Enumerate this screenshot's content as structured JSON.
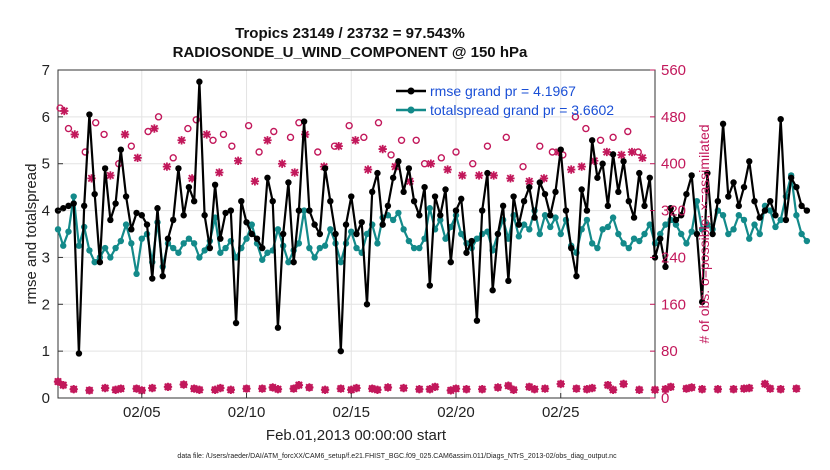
{
  "chart_data": {
    "type": "line",
    "title": "Tropics 23149 / 23732 = 97.543%",
    "subtitle": "RADIOSONDE_U_WIND_COMPONENT @ 150 hPa",
    "xlabel": "Feb.01,2013 00:00:00 start",
    "ylabel": "rmse and totalspread",
    "y2label": "# of obs: o=possible; ×=assimilated",
    "footnote": "data file: /Users/raeder/DAI/ATM_forcXX/CAM6_setup/f.e21.FHIST_BGC.f09_025.CAM6assim.011/Diags_NTrS_2013-02/obs_diag_output.nc",
    "xlim": [
      1,
      29.5
    ],
    "ylim": [
      0,
      7
    ],
    "y2lim": [
      0,
      560
    ],
    "x_ticks": [
      5,
      10,
      15,
      20,
      25
    ],
    "x_tick_labels": [
      "02/05",
      "02/10",
      "02/15",
      "02/20",
      "02/25"
    ],
    "y_ticks": [
      "0",
      "1",
      "2",
      "3",
      "4",
      "5",
      "6",
      "7"
    ],
    "y2_ticks": [
      "0",
      "80",
      "160",
      "240",
      "320",
      "400",
      "480",
      "560"
    ],
    "grid": true,
    "legend_position": "top-right",
    "x_start": 1.0,
    "x_step": 0.25,
    "series": [
      {
        "name": "rmse grand pr = 4.1967",
        "color": "#000000",
        "axis": "left",
        "values": [
          4.0,
          4.05,
          4.1,
          4.15,
          0.95,
          4.1,
          6.05,
          4.35,
          2.9,
          4.9,
          3.8,
          4.15,
          5.3,
          4.3,
          3.6,
          3.95,
          3.9,
          3.7,
          2.55,
          4.05,
          2.6,
          3.4,
          3.8,
          4.9,
          3.9,
          4.5,
          4.2,
          6.75,
          3.9,
          3.2,
          4.55,
          3.4,
          3.95,
          4.0,
          1.6,
          4.2,
          3.75,
          3.5,
          3.4,
          3.2,
          4.7,
          4.2,
          1.5,
          3.5,
          4.6,
          2.9,
          4.0,
          5.9,
          4.0,
          3.7,
          3.5,
          4.9,
          4.2,
          3.5,
          1.0,
          3.7,
          4.3,
          3.5,
          3.75,
          2.0,
          4.4,
          4.8,
          3.7,
          4.1,
          4.7,
          5.05,
          4.4,
          4.9,
          4.2,
          3.9,
          4.5,
          2.4,
          4.3,
          3.9,
          4.45,
          2.9,
          4.0,
          4.25,
          3.1,
          3.35,
          1.65,
          4.0,
          4.8,
          2.3,
          3.5,
          4.1,
          2.5,
          4.3,
          3.7,
          4.2,
          4.5,
          3.85,
          4.6,
          4.35,
          3.9,
          4.4,
          5.3,
          4.0,
          3.2,
          2.6,
          4.45,
          4.0,
          5.5,
          4.7,
          5.0,
          4.1,
          5.2,
          4.4,
          5.05,
          4.2,
          3.85,
          4.8,
          4.1,
          4.7,
          3.0,
          3.4,
          2.8,
          4.05,
          3.8,
          3.9,
          4.35,
          4.75,
          3.5,
          2.05,
          4.8,
          3.5,
          4.2,
          5.85,
          4.3,
          4.6,
          4.1,
          4.5,
          5.05,
          4.2,
          3.85,
          4.0,
          4.2,
          3.9,
          5.95,
          3.8,
          4.7,
          4.5,
          4.1,
          4.0
        ]
      },
      {
        "name": "totalspread grand pr = 3.6602",
        "color": "#138a8a",
        "axis": "left",
        "values": [
          3.6,
          3.25,
          3.55,
          4.3,
          3.25,
          3.65,
          3.15,
          2.9,
          3.0,
          3.2,
          3.0,
          3.2,
          3.35,
          3.7,
          3.3,
          2.65,
          3.4,
          3.5,
          2.9,
          3.75,
          2.8,
          3.3,
          3.2,
          3.1,
          3.3,
          3.4,
          3.3,
          3.0,
          3.15,
          3.35,
          3.85,
          3.1,
          3.2,
          3.35,
          3.0,
          3.2,
          3.4,
          3.7,
          3.3,
          2.95,
          3.1,
          3.15,
          3.6,
          3.25,
          2.9,
          3.15,
          3.3,
          4.0,
          3.2,
          3.0,
          3.2,
          3.25,
          3.6,
          3.3,
          2.9,
          3.3,
          3.55,
          3.2,
          3.1,
          3.5,
          3.7,
          3.3,
          3.85,
          3.9,
          3.8,
          3.95,
          3.6,
          3.35,
          3.2,
          3.2,
          3.4,
          4.05,
          3.6,
          3.8,
          3.4,
          3.65,
          3.9,
          3.5,
          3.3,
          3.2,
          3.4,
          3.5,
          3.55,
          3.15,
          3.5,
          3.8,
          3.4,
          3.9,
          3.45,
          3.7,
          3.6,
          4.0,
          3.5,
          3.9,
          3.65,
          3.85,
          3.5,
          3.8,
          3.25,
          3.1,
          3.6,
          3.8,
          3.3,
          3.2,
          3.6,
          3.65,
          3.85,
          3.5,
          3.3,
          3.2,
          3.4,
          3.35,
          3.5,
          3.7,
          3.3,
          3.5,
          3.7,
          3.8,
          3.7,
          3.5,
          3.3,
          3.55,
          4.2,
          3.6,
          3.7,
          3.6,
          4.0,
          3.9,
          3.5,
          3.6,
          3.9,
          3.8,
          3.4,
          3.7,
          3.5,
          4.1,
          4.0,
          3.65,
          3.8,
          4.3,
          4.75,
          3.9,
          3.5,
          3.35
        ]
      },
      {
        "name": "obs possible (o)",
        "color": "#c2185b",
        "axis": "right",
        "values": [
          28,
          22,
          20,
          15,
          15,
          17,
          13,
          15,
          14,
          17,
          24,
          14,
          16,
          11,
          15,
          16,
          13,
          15,
          17,
          12,
          13,
          19,
          15,
          13,
          23,
          15,
          16,
          14,
          17,
          15,
          14,
          17,
          23,
          14,
          15,
          13,
          16,
          19,
          15,
          16,
          30,
          18,
          15,
          17,
          14,
          16,
          22,
          15,
          18,
          16,
          13,
          14,
          19,
          14,
          16,
          15,
          14,
          17,
          15,
          19,
          16,
          14,
          15,
          18,
          14,
          16,
          17,
          12,
          14,
          15,
          16,
          15,
          19,
          14,
          15,
          13,
          16,
          17,
          15,
          16,
          14,
          15,
          24,
          16,
          18,
          15,
          21,
          14,
          15,
          13,
          19,
          15,
          14,
          16,
          17,
          15,
          24,
          15,
          14,
          16,
          18,
          15,
          17,
          13,
          15,
          22,
          14,
          16,
          24,
          15,
          17,
          14,
          16,
          18,
          14,
          15,
          15,
          19,
          23,
          14,
          16,
          18,
          14,
          15,
          17,
          16,
          15,
          21,
          14,
          15,
          28,
          16,
          17,
          14,
          15,
          24,
          16,
          14,
          15,
          18,
          15,
          16,
          15,
          5
        ]
      },
      {
        "name": "obs assimilated (×)",
        "color": "#c2185b",
        "axis": "right",
        "values": [
          28,
          22,
          20,
          15,
          15,
          17,
          13,
          15,
          14,
          17,
          24,
          14,
          16,
          11,
          15,
          16,
          13,
          15,
          17,
          12,
          13,
          19,
          15,
          13,
          23,
          15,
          16,
          14,
          17,
          15,
          14,
          17,
          23,
          14,
          15,
          13,
          16,
          19,
          15,
          16,
          30,
          18,
          15,
          17,
          14,
          16,
          22,
          15,
          18,
          16,
          13,
          14,
          19,
          14,
          16,
          15,
          14,
          17,
          15,
          19,
          16,
          14,
          15,
          18,
          14,
          16,
          17,
          12,
          14,
          15,
          16,
          15,
          19,
          14,
          15,
          13,
          16,
          17,
          15,
          16,
          14,
          15,
          24,
          16,
          18,
          15,
          21,
          14,
          15,
          13,
          19,
          15,
          14,
          16,
          17,
          15,
          24,
          15,
          14,
          16,
          18,
          15,
          17,
          13,
          15,
          22,
          14,
          16,
          24,
          15,
          17,
          14,
          16,
          18,
          14,
          15,
          15,
          19,
          23,
          14,
          16,
          18,
          14,
          15,
          17,
          16,
          15,
          21,
          14,
          15,
          28,
          16,
          17,
          14,
          15,
          24,
          16,
          14,
          15,
          18,
          15,
          16,
          15,
          5
        ]
      }
    ],
    "obs_upper": {
      "possible_x": [
        1.1,
        1.5,
        2.3,
        2.8,
        3.2,
        3.9,
        4.5,
        5.3,
        5.8,
        6.5,
        7.2,
        7.6,
        8.4,
        8.9,
        9.3,
        10.1,
        10.6,
        11.3,
        12.1,
        12.5,
        13.4,
        14.2,
        14.9,
        15.6,
        16.3,
        16.9,
        17.4,
        18.1,
        18.5,
        19.3,
        20.0,
        20.8,
        21.5,
        22.4,
        23.2,
        24.0,
        24.6,
        25.1,
        25.7,
        26.2,
        26.9,
        27.5,
        28.2,
        28.7
      ],
      "possible_y": [
        495,
        460,
        420,
        470,
        450,
        400,
        430,
        455,
        480,
        410,
        460,
        475,
        440,
        450,
        430,
        465,
        420,
        455,
        445,
        470,
        420,
        430,
        465,
        445,
        470,
        415,
        440,
        440,
        400,
        410,
        420,
        400,
        430,
        445,
        395,
        430,
        420,
        415,
        480,
        460,
        440,
        445,
        455,
        420
      ],
      "assim_x": [
        1.3,
        1.8,
        2.6,
        3.5,
        4.2,
        4.8,
        5.6,
        6.2,
        6.9,
        7.4,
        8.1,
        8.7,
        9.6,
        10.4,
        11.0,
        11.7,
        12.3,
        12.8,
        13.7,
        14.4,
        15.2,
        15.8,
        16.5,
        17.1,
        17.8,
        18.8,
        19.6,
        20.3,
        21.1,
        21.8,
        22.6,
        23.5,
        24.2,
        24.9,
        25.5,
        26.0,
        26.6,
        27.2,
        27.9,
        28.4,
        28.9
      ],
      "assim_y": [
        490,
        450,
        375,
        380,
        450,
        410,
        460,
        395,
        440,
        375,
        450,
        385,
        405,
        370,
        440,
        400,
        385,
        450,
        395,
        430,
        440,
        390,
        425,
        395,
        370,
        400,
        390,
        380,
        380,
        380,
        375,
        370,
        375,
        420,
        390,
        395,
        405,
        420,
        415,
        420,
        410
      ]
    }
  }
}
